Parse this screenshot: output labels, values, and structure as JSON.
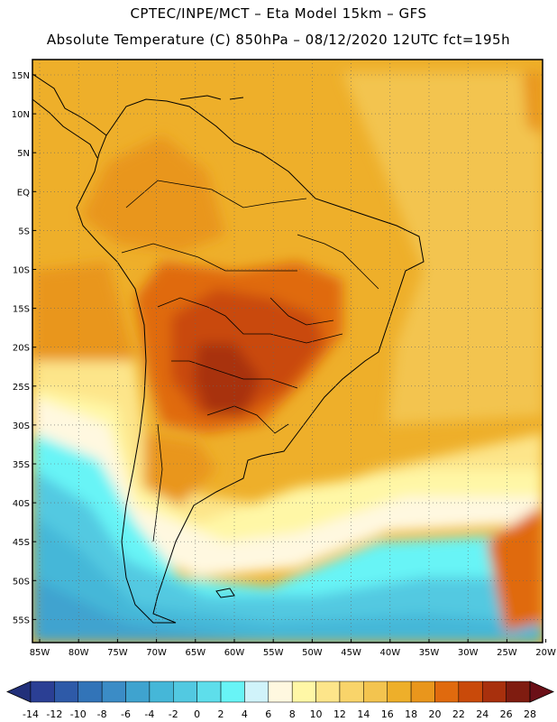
{
  "header": {
    "line1": "CPTEC/INPE/MCT –  Eta Model 15km – GFS",
    "line2": "Absolute Temperature (C) 850hPa – 08/12/2020 12UTC fct=195h"
  },
  "map": {
    "lat_labels": [
      "15N",
      "10N",
      "5N",
      "EQ",
      "5S",
      "10S",
      "15S",
      "20S",
      "25S",
      "30S",
      "35S",
      "40S",
      "45S",
      "50S",
      "55S"
    ],
    "lon_labels": [
      "85W",
      "80W",
      "75W",
      "70W",
      "65W",
      "60W",
      "55W",
      "50W",
      "45W",
      "40W",
      "35W",
      "30W",
      "25W",
      "20W"
    ]
  },
  "colorbar": {
    "labels": [
      "-14",
      "-12",
      "-10",
      "-8",
      "-6",
      "-4",
      "-2",
      "0",
      "2",
      "4",
      "6",
      "8",
      "10",
      "12",
      "14",
      "16",
      "18",
      "20",
      "22",
      "24",
      "26",
      "28"
    ],
    "colors": [
      "#2b3f94",
      "#2e5aa8",
      "#3274b8",
      "#3b8cc6",
      "#3fa3cf",
      "#45b7d8",
      "#52c9e1",
      "#5edeeb",
      "#68f4f6",
      "#d0f3fa",
      "#fff8e0",
      "#fff7a6",
      "#fde58a",
      "#f9d46a",
      "#f3c44f",
      "#eeaf2a",
      "#e9961c",
      "#e06a0e",
      "#c94a0a",
      "#a8300d",
      "#7f1c10"
    ],
    "under_color": "#22307a",
    "over_color": "#6b0f17"
  }
}
